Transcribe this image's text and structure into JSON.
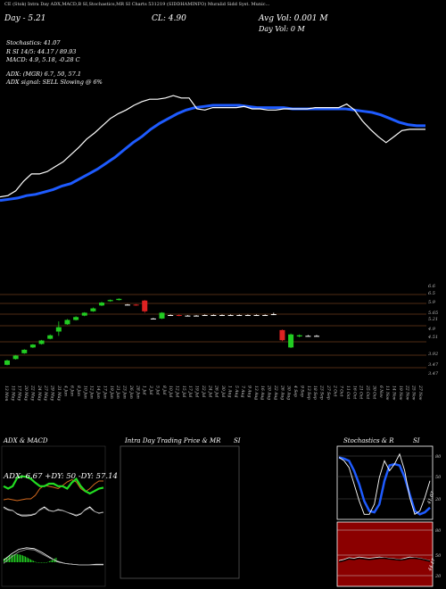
{
  "header": {
    "top_line": "CE (Stok) Intra Day ADX,MACD,B   SI,Stochastics,MR   SI Charts 531219   (SIDDHAMINFO) Muralid Sidd Syst. Munic...",
    "price_line": "Day - 5.21",
    "cl_line": "CL: 4.90",
    "avg_vol": "Avg Vol: 0.001 M",
    "day_vol": "Day Vol: 0   M"
  },
  "stats": [
    "Stochastics: 41.07",
    "R                SI 14/5: 44.17 / 89.93",
    "MACD: 4.9, 5.18, -0.28  C",
    "ADX:              (MGR) 6.7,  50,  57.1",
    "ADX  signal: SELL  Slowing @ 6%"
  ],
  "colors": {
    "bg": "#000000",
    "up": "#22cc22",
    "down": "#dd2222",
    "ema": "#1e5bff",
    "price": "#ffffff",
    "grid": "#6b3a1a",
    "stoch_bg": "#000000",
    "rsi_bg": "#8b0000"
  },
  "chart_data": {
    "type": "candlestick",
    "price_axis_ticks": [
      "6.6",
      "6.5",
      "5.9",
      "5.65",
      "5.21",
      "4.9",
      "4.51",
      "3.92",
      "3.47",
      "3.47"
    ],
    "dates": [
      "13 Mon",
      "15 May",
      "17 May",
      "20 May",
      "22 May",
      "24 May",
      "27 May",
      "29 May",
      "31 May",
      "4 Jun",
      "6 Jun",
      "8 Jun",
      "10 Jun",
      "12 Jun",
      "14 Jun",
      "17 Jun",
      "19 Jun",
      "21 Jun",
      "23 Jun",
      "26 Jun",
      "28 Jun",
      "1 Jul",
      "3 Jul",
      "5 Jul",
      "8 Jul",
      "10 Jul",
      "12 Jul",
      "15 Jul",
      "17 Jul",
      "19 Jul",
      "22 Jul",
      "24 Jul",
      "26 Jul",
      "30 Jul",
      "1 Aug",
      "5 Aug",
      "7 Aug",
      "9 Aug",
      "13 Aug",
      "16 Aug",
      "20 Aug",
      "22 Aug",
      "26 Aug",
      "30 Aug",
      "4 Sep",
      "9 Sep",
      "13 Sep",
      "18 Sep",
      "23 Sep",
      "27 Sep",
      "2 Oct",
      "7 Oct",
      "11 Oct",
      "16 Oct",
      "21 Oct",
      "25 Oct",
      "30 Oct",
      "6 Nov",
      "11 Nov",
      "14 Nov",
      "19 Nov",
      "22 Nov",
      "25 Nov",
      "27 Nov"
    ],
    "candles": [
      {
        "o": 3.9,
        "c": 4.05,
        "h": 4.08,
        "l": 3.88
      },
      {
        "o": 4.1,
        "c": 4.22,
        "h": 4.24,
        "l": 4.08
      },
      {
        "o": 4.3,
        "c": 4.42,
        "h": 4.44,
        "l": 4.28
      },
      {
        "o": 4.5,
        "c": 4.6,
        "h": 4.62,
        "l": 4.48
      },
      {
        "o": 4.62,
        "c": 4.74,
        "h": 4.76,
        "l": 4.6
      },
      {
        "o": 4.8,
        "c": 4.92,
        "h": 4.95,
        "l": 4.78
      },
      {
        "o": 5.05,
        "c": 5.2,
        "h": 5.4,
        "l": 4.9
      },
      {
        "o": 5.3,
        "c": 5.45,
        "h": 5.48,
        "l": 5.28
      },
      {
        "o": 5.45,
        "c": 5.55,
        "h": 5.58,
        "l": 5.43
      },
      {
        "o": 5.6,
        "c": 5.7,
        "h": 5.72,
        "l": 5.58
      },
      {
        "o": 5.75,
        "c": 5.85,
        "h": 5.88,
        "l": 5.73
      },
      {
        "o": 5.95,
        "c": 6.05,
        "h": 6.08,
        "l": 5.93
      },
      {
        "o": 6.1,
        "c": 6.14,
        "h": 6.16,
        "l": 6.08
      },
      {
        "o": 6.14,
        "c": 6.18,
        "h": 6.2,
        "l": 6.12
      },
      {
        "o": 5.98,
        "c": 5.98,
        "h": 6.0,
        "l": 5.96
      },
      {
        "o": 5.98,
        "c": 5.96,
        "h": 6.0,
        "l": 5.94
      },
      {
        "o": 6.12,
        "c": 5.75,
        "h": 6.14,
        "l": 5.7
      },
      {
        "o": 5.5,
        "c": 5.5,
        "h": 5.52,
        "l": 5.48
      },
      {
        "o": 5.5,
        "c": 5.7,
        "h": 5.72,
        "l": 5.48
      },
      {
        "o": 5.62,
        "c": 5.62,
        "h": 5.64,
        "l": 5.6
      },
      {
        "o": 5.62,
        "c": 5.6,
        "h": 5.64,
        "l": 5.58
      },
      {
        "o": 5.6,
        "c": 5.6,
        "h": 5.62,
        "l": 5.58
      },
      {
        "o": 5.6,
        "c": 5.6,
        "h": 5.62,
        "l": 5.58
      },
      {
        "o": 5.62,
        "c": 5.62,
        "h": 5.64,
        "l": 5.6
      },
      {
        "o": 5.62,
        "c": 5.62,
        "h": 5.64,
        "l": 5.6
      },
      {
        "o": 5.62,
        "c": 5.62,
        "h": 5.64,
        "l": 5.6
      },
      {
        "o": 5.62,
        "c": 5.62,
        "h": 5.64,
        "l": 5.6
      },
      {
        "o": 5.62,
        "c": 5.62,
        "h": 5.64,
        "l": 5.6
      },
      {
        "o": 5.62,
        "c": 5.62,
        "h": 5.64,
        "l": 5.6
      },
      {
        "o": 5.62,
        "c": 5.62,
        "h": 5.64,
        "l": 5.6
      },
      {
        "o": 5.62,
        "c": 5.62,
        "h": 5.64,
        "l": 5.6
      },
      {
        "o": 5.65,
        "c": 5.65,
        "h": 5.7,
        "l": 5.62
      },
      {
        "o": 5.1,
        "c": 4.75,
        "h": 5.12,
        "l": 4.72
      },
      {
        "o": 4.5,
        "c": 4.95,
        "h": 4.98,
        "l": 4.48
      },
      {
        "o": 4.88,
        "c": 4.92,
        "h": 4.95,
        "l": 4.85
      },
      {
        "o": 4.9,
        "c": 4.9,
        "h": 4.93,
        "l": 4.88
      },
      {
        "o": 4.9,
        "c": 4.9,
        "h": 4.93,
        "l": 4.88
      }
    ],
    "price_line": [
      0.07,
      0.08,
      0.12,
      0.2,
      0.26,
      0.26,
      0.28,
      0.32,
      0.36,
      0.42,
      0.48,
      0.55,
      0.6,
      0.66,
      0.72,
      0.76,
      0.79,
      0.83,
      0.86,
      0.88,
      0.88,
      0.89,
      0.91,
      0.89,
      0.89,
      0.8,
      0.79,
      0.81,
      0.81,
      0.81,
      0.81,
      0.82,
      0.8,
      0.8,
      0.79,
      0.79,
      0.8,
      0.8,
      0.8,
      0.8,
      0.81,
      0.81,
      0.81,
      0.81,
      0.84,
      0.79,
      0.7,
      0.63,
      0.57,
      0.52,
      0.57,
      0.62,
      0.63,
      0.63,
      0.63
    ],
    "ema_line": [
      0.04,
      0.05,
      0.06,
      0.08,
      0.09,
      0.11,
      0.13,
      0.16,
      0.18,
      0.22,
      0.26,
      0.3,
      0.35,
      0.4,
      0.46,
      0.52,
      0.57,
      0.63,
      0.68,
      0.72,
      0.76,
      0.79,
      0.81,
      0.82,
      0.83,
      0.83,
      0.83,
      0.83,
      0.82,
      0.81,
      0.81,
      0.81,
      0.81,
      0.8,
      0.8,
      0.8,
      0.8,
      0.8,
      0.8,
      0.8,
      0.79,
      0.78,
      0.77,
      0.75,
      0.72,
      0.69,
      0.67,
      0.66,
      0.66
    ],
    "adx_panel": {
      "title": "ADX  & MACD",
      "label": "ADX: 6.67  +DY: 50  -DY: 57.14",
      "green": [
        0.55,
        0.5,
        0.55,
        0.72,
        0.75,
        0.74,
        0.7,
        0.62,
        0.55,
        0.55,
        0.6,
        0.6,
        0.55,
        0.55,
        0.5,
        0.62,
        0.7,
        0.55,
        0.45,
        0.4,
        0.45,
        0.5,
        0.52
      ],
      "orange": [
        0.3,
        0.32,
        0.3,
        0.28,
        0.3,
        0.32,
        0.32,
        0.4,
        0.55,
        0.62,
        0.6,
        0.58,
        0.55,
        0.62,
        0.7,
        0.75,
        0.7,
        0.55,
        0.48,
        0.55,
        0.65,
        0.72,
        0.72
      ],
      "white": [
        0.6,
        0.45,
        0.4,
        0.2,
        0.1,
        0.1,
        0.12,
        0.2,
        0.45,
        0.6,
        0.4,
        0.35,
        0.45,
        0.4,
        0.3,
        0.2,
        0.1,
        0.2,
        0.45,
        0.6,
        0.35,
        0.25,
        0.3
      ]
    },
    "intraday_panel": {
      "title": "Intra  Day Trading Price  & MR",
      "title_right": "SI"
    },
    "stoch_panel": {
      "title": "Stochastics & R",
      "title_right": "SI",
      "ticks": [
        "80",
        "50",
        "20"
      ],
      "blue": [
        0.9,
        0.88,
        0.85,
        0.7,
        0.5,
        0.25,
        0.1,
        0.08,
        0.2,
        0.55,
        0.78,
        0.8,
        0.78,
        0.6,
        0.35,
        0.1,
        0.05,
        0.08,
        0.15
      ],
      "white": [
        0.9,
        0.85,
        0.75,
        0.5,
        0.25,
        0.05,
        0.05,
        0.2,
        0.6,
        0.85,
        0.7,
        0.8,
        0.95,
        0.7,
        0.3,
        0.05,
        0.1,
        0.3,
        0.55
      ],
      "annot": "41.07",
      "rsi_ticks": [
        "80",
        "50",
        "20"
      ],
      "rsi_annot": "44.17"
    }
  }
}
